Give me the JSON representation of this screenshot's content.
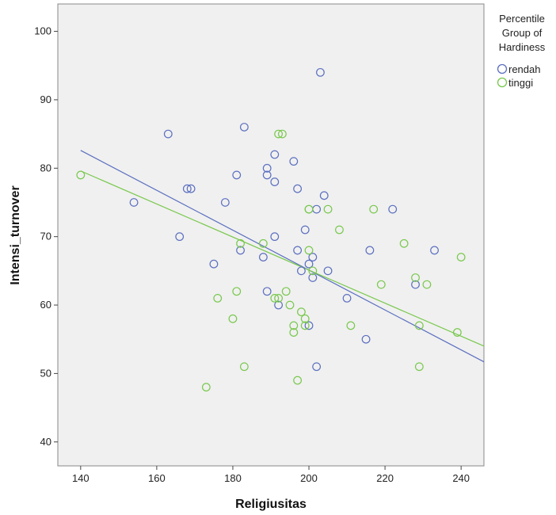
{
  "chart_data": {
    "type": "scatter",
    "xlabel": "Religiusitas",
    "ylabel": "Intensi_turnover",
    "xlim": [
      134,
      246
    ],
    "ylim": [
      36.5,
      104
    ],
    "xticks": [
      140,
      160,
      180,
      200,
      220,
      240
    ],
    "yticks": [
      40,
      50,
      60,
      70,
      80,
      90,
      100
    ],
    "grid": false,
    "plot_background": "#f0f0f0",
    "legend": {
      "title_lines": [
        "Percentile",
        "Group of",
        "Hardiness"
      ],
      "placement": "right",
      "entries": [
        "rendah",
        "tinggi"
      ]
    },
    "series": [
      {
        "name": "rendah",
        "color": "#5b6fc0",
        "fit_line": {
          "x": [
            140,
            246
          ],
          "y": [
            82.6,
            51.7
          ]
        },
        "points": [
          [
            154,
            75
          ],
          [
            163,
            85
          ],
          [
            166,
            70
          ],
          [
            168,
            77
          ],
          [
            169,
            77
          ],
          [
            175,
            66
          ],
          [
            178,
            75
          ],
          [
            181,
            79
          ],
          [
            182,
            68
          ],
          [
            183,
            86
          ],
          [
            188,
            67
          ],
          [
            189,
            79
          ],
          [
            189,
            80
          ],
          [
            189,
            62
          ],
          [
            191,
            82
          ],
          [
            191,
            78
          ],
          [
            191,
            70
          ],
          [
            192,
            60
          ],
          [
            196,
            81
          ],
          [
            197,
            77
          ],
          [
            197,
            68
          ],
          [
            198,
            65
          ],
          [
            199,
            71
          ],
          [
            200,
            57
          ],
          [
            200,
            66
          ],
          [
            201,
            67
          ],
          [
            201,
            64
          ],
          [
            202,
            74
          ],
          [
            202,
            51
          ],
          [
            203,
            94
          ],
          [
            204,
            76
          ],
          [
            205,
            65
          ],
          [
            210,
            61
          ],
          [
            215,
            55
          ],
          [
            216,
            68
          ],
          [
            222,
            74
          ],
          [
            228,
            63
          ],
          [
            233,
            68
          ]
        ]
      },
      {
        "name": "tinggi",
        "color": "#78c84c",
        "fit_line": {
          "x": [
            140,
            246
          ],
          "y": [
            79.6,
            54.0
          ]
        },
        "points": [
          [
            140,
            79
          ],
          [
            173,
            48
          ],
          [
            176,
            61
          ],
          [
            180,
            58
          ],
          [
            181,
            62
          ],
          [
            182,
            69
          ],
          [
            183,
            51
          ],
          [
            188,
            69
          ],
          [
            191,
            61
          ],
          [
            192,
            61
          ],
          [
            192,
            85
          ],
          [
            193,
            85
          ],
          [
            194,
            62
          ],
          [
            195,
            60
          ],
          [
            196,
            57
          ],
          [
            196,
            56
          ],
          [
            197,
            49
          ],
          [
            198,
            59
          ],
          [
            199,
            58
          ],
          [
            199,
            57
          ],
          [
            200,
            74
          ],
          [
            200,
            68
          ],
          [
            200,
            74
          ],
          [
            201,
            65
          ],
          [
            205,
            74
          ],
          [
            208,
            71
          ],
          [
            211,
            57
          ],
          [
            217,
            74
          ],
          [
            219,
            63
          ],
          [
            225,
            69
          ],
          [
            228,
            64
          ],
          [
            229,
            57
          ],
          [
            229,
            51
          ],
          [
            231,
            63
          ],
          [
            239,
            56
          ],
          [
            240,
            67
          ]
        ]
      }
    ]
  }
}
